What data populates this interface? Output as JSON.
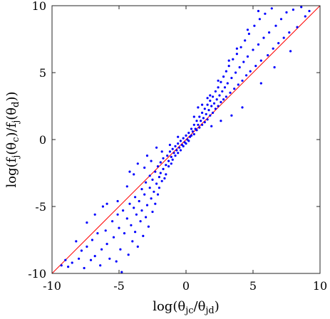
{
  "chart_data": {
    "type": "scatter",
    "xlabel": "log(θjc/θjd)",
    "ylabel": "log(fj(θc)/fj(θd))",
    "xlim": [
      -10,
      10
    ],
    "ylim": [
      -10,
      10
    ],
    "xticks": [
      "-10",
      "-5",
      "0",
      "5",
      "10"
    ],
    "yticks": [
      "-10",
      "-5",
      "0",
      "5",
      "10"
    ],
    "grid": false,
    "reference_line": {
      "x": [
        -10,
        10
      ],
      "y": [
        -10,
        10
      ],
      "color": "#ff0000"
    },
    "point_color": "#0000ff",
    "series": [
      {
        "points": [
          [
            -9.3,
            -9.4
          ],
          [
            -9.0,
            -9.0
          ],
          [
            -8.8,
            -9.5
          ],
          [
            -8.5,
            -9.2
          ],
          [
            -8.0,
            -8.9
          ],
          [
            -7.8,
            -8.3
          ],
          [
            -7.6,
            -9.6
          ],
          [
            -7.4,
            -8.0
          ],
          [
            -7.1,
            -9.0
          ],
          [
            -7.0,
            -7.5
          ],
          [
            -6.8,
            -8.7
          ],
          [
            -6.6,
            -7.0
          ],
          [
            -6.4,
            -9.4
          ],
          [
            -6.3,
            -8.2
          ],
          [
            -6.0,
            -6.8
          ],
          [
            -5.9,
            -7.8
          ],
          [
            -5.7,
            -8.9
          ],
          [
            -5.5,
            -6.1
          ],
          [
            -5.4,
            -7.3
          ],
          [
            -5.2,
            -9.1
          ],
          [
            -5.1,
            -5.6
          ],
          [
            -5.0,
            -6.6
          ],
          [
            -4.9,
            -8.2
          ],
          [
            -4.8,
            -9.9
          ],
          [
            -4.7,
            -5.3
          ],
          [
            -4.6,
            -7.0
          ],
          [
            -4.4,
            -5.9
          ],
          [
            -4.3,
            -8.6
          ],
          [
            -4.2,
            -4.8
          ],
          [
            -4.1,
            -6.4
          ],
          [
            -4.0,
            -7.6
          ],
          [
            -3.9,
            -5.1
          ],
          [
            -3.8,
            -4.3
          ],
          [
            -3.8,
            -6.9
          ],
          [
            -3.7,
            -5.6
          ],
          [
            -3.6,
            -8.0
          ],
          [
            -3.5,
            -4.6
          ],
          [
            -3.4,
            -6.1
          ],
          [
            -3.3,
            -3.7
          ],
          [
            -3.3,
            -5.3
          ],
          [
            -3.2,
            -7.2
          ],
          [
            -3.1,
            -4.1
          ],
          [
            -3.0,
            -5.8
          ],
          [
            -3.0,
            -3.2
          ],
          [
            -2.9,
            -4.9
          ],
          [
            -2.8,
            -6.5
          ],
          [
            -2.7,
            -3.6
          ],
          [
            -2.7,
            -2.7
          ],
          [
            -2.6,
            -4.4
          ],
          [
            -2.5,
            -5.4
          ],
          [
            -2.5,
            -3.0
          ],
          [
            -2.4,
            -3.9
          ],
          [
            -2.3,
            -2.4
          ],
          [
            -2.3,
            -4.8
          ],
          [
            -2.2,
            -3.3
          ],
          [
            -2.1,
            -2.0
          ],
          [
            -2.1,
            -4.1
          ],
          [
            -2.0,
            -2.8
          ],
          [
            -2.0,
            -3.6
          ],
          [
            -1.9,
            -1.7
          ],
          [
            -1.9,
            -2.5
          ],
          [
            -1.8,
            -3.1
          ],
          [
            -1.7,
            -2.2
          ],
          [
            -1.7,
            -1.4
          ],
          [
            -1.6,
            -2.9
          ],
          [
            -1.5,
            -1.9
          ],
          [
            -1.5,
            -2.6
          ],
          [
            -1.4,
            -1.2
          ],
          [
            -1.3,
            -2.0
          ],
          [
            -1.3,
            -1.6
          ],
          [
            -1.2,
            -0.9
          ],
          [
            -1.1,
            -1.8
          ],
          [
            -1.1,
            -1.3
          ],
          [
            -1.0,
            -0.7
          ],
          [
            -1.0,
            -1.5
          ],
          [
            -0.9,
            -1.0
          ],
          [
            -0.8,
            -0.5
          ],
          [
            -0.8,
            -1.2
          ],
          [
            -0.7,
            -0.8
          ],
          [
            -0.6,
            -0.3
          ],
          [
            -0.6,
            -1.0
          ],
          [
            -0.5,
            -0.6
          ],
          [
            -0.4,
            -0.1
          ],
          [
            -0.4,
            -0.8
          ],
          [
            -0.3,
            -0.4
          ],
          [
            -0.2,
            0.1
          ],
          [
            -0.2,
            -0.5
          ],
          [
            -0.1,
            -0.2
          ],
          [
            0.0,
            0.3
          ],
          [
            0.0,
            -0.3
          ],
          [
            0.1,
            0.0
          ],
          [
            0.2,
            0.5
          ],
          [
            0.2,
            -0.1
          ],
          [
            0.3,
            0.2
          ],
          [
            0.4,
            0.8
          ],
          [
            0.4,
            0.3
          ],
          [
            0.5,
            0.6
          ],
          [
            0.6,
            1.1
          ],
          [
            0.6,
            0.4
          ],
          [
            0.7,
            0.8
          ],
          [
            0.8,
            1.4
          ],
          [
            0.8,
            0.7
          ],
          [
            0.9,
            1.1
          ],
          [
            1.0,
            1.7
          ],
          [
            1.0,
            0.9
          ],
          [
            1.1,
            1.4
          ],
          [
            1.2,
            2.0
          ],
          [
            1.2,
            1.1
          ],
          [
            1.3,
            1.6
          ],
          [
            1.4,
            2.3
          ],
          [
            1.4,
            1.3
          ],
          [
            1.5,
            1.9
          ],
          [
            1.6,
            2.6
          ],
          [
            1.6,
            1.5
          ],
          [
            1.7,
            2.2
          ],
          [
            1.8,
            2.9
          ],
          [
            1.8,
            1.8
          ],
          [
            1.9,
            2.5
          ],
          [
            2.0,
            3.2
          ],
          [
            2.0,
            2.0
          ],
          [
            2.1,
            2.7
          ],
          [
            2.2,
            3.6
          ],
          [
            2.2,
            2.3
          ],
          [
            2.3,
            3.0
          ],
          [
            2.4,
            3.9
          ],
          [
            2.4,
            2.5
          ],
          [
            2.5,
            3.3
          ],
          [
            2.6,
            4.3
          ],
          [
            2.6,
            2.8
          ],
          [
            2.7,
            3.6
          ],
          [
            2.8,
            4.7
          ],
          [
            2.8,
            3.0
          ],
          [
            2.9,
            3.9
          ],
          [
            3.0,
            5.1
          ],
          [
            3.0,
            3.2
          ],
          [
            3.1,
            4.2
          ],
          [
            3.2,
            5.5
          ],
          [
            3.3,
            3.5
          ],
          [
            3.4,
            4.6
          ],
          [
            3.5,
            6.0
          ],
          [
            3.6,
            3.8
          ],
          [
            3.7,
            5.0
          ],
          [
            3.8,
            6.4
          ],
          [
            3.9,
            4.1
          ],
          [
            4.0,
            5.4
          ],
          [
            4.1,
            6.9
          ],
          [
            4.2,
            4.4
          ],
          [
            4.3,
            5.8
          ],
          [
            4.4,
            7.4
          ],
          [
            4.5,
            4.8
          ],
          [
            4.6,
            6.2
          ],
          [
            4.7,
            7.9
          ],
          [
            4.8,
            5.1
          ],
          [
            5.0,
            6.7
          ],
          [
            5.1,
            8.5
          ],
          [
            5.2,
            5.5
          ],
          [
            5.4,
            7.1
          ],
          [
            5.5,
            9.0
          ],
          [
            5.6,
            5.9
          ],
          [
            5.8,
            7.6
          ],
          [
            5.9,
            9.4
          ],
          [
            6.1,
            6.3
          ],
          [
            6.2,
            8.0
          ],
          [
            6.4,
            9.8
          ],
          [
            6.5,
            6.8
          ],
          [
            6.7,
            8.5
          ],
          [
            6.9,
            7.2
          ],
          [
            7.1,
            9.0
          ],
          [
            7.3,
            7.6
          ],
          [
            7.5,
            9.5
          ],
          [
            7.7,
            8.0
          ],
          [
            8.0,
            9.7
          ],
          [
            8.3,
            8.4
          ],
          [
            8.6,
            9.9
          ],
          [
            8.9,
            9.2
          ],
          [
            9.2,
            9.6
          ],
          [
            -6.8,
            -5.6
          ],
          [
            -5.9,
            -4.8
          ],
          [
            -4.4,
            -3.5
          ],
          [
            -3.9,
            -2.6
          ],
          [
            -3.1,
            -2.1
          ],
          [
            -2.6,
            -1.6
          ],
          [
            -1.8,
            -0.9
          ],
          [
            -1.2,
            -0.4
          ],
          [
            -0.6,
            0.2
          ],
          [
            0.6,
            1.7
          ],
          [
            1.2,
            2.6
          ],
          [
            1.8,
            3.3
          ],
          [
            2.4,
            4.4
          ],
          [
            3.2,
            5.9
          ],
          [
            3.8,
            6.8
          ],
          [
            4.6,
            8.2
          ],
          [
            5.4,
            9.6
          ],
          [
            -7.4,
            -6.2
          ],
          [
            -8.2,
            -7.6
          ],
          [
            -6.2,
            -5.0
          ],
          [
            -5.1,
            -4.6
          ],
          [
            4.2,
            2.4
          ],
          [
            3.4,
            1.8
          ],
          [
            2.6,
            1.4
          ],
          [
            1.9,
            1.0
          ],
          [
            5.6,
            4.2
          ],
          [
            6.6,
            5.4
          ],
          [
            7.8,
            6.6
          ],
          [
            -2.9,
            -1.2
          ],
          [
            -3.6,
            -1.8
          ],
          [
            -2.2,
            -0.6
          ],
          [
            -4.2,
            -2.4
          ],
          [
            0.9,
            2.4
          ],
          [
            1.6,
            3.1
          ]
        ]
      }
    ]
  }
}
